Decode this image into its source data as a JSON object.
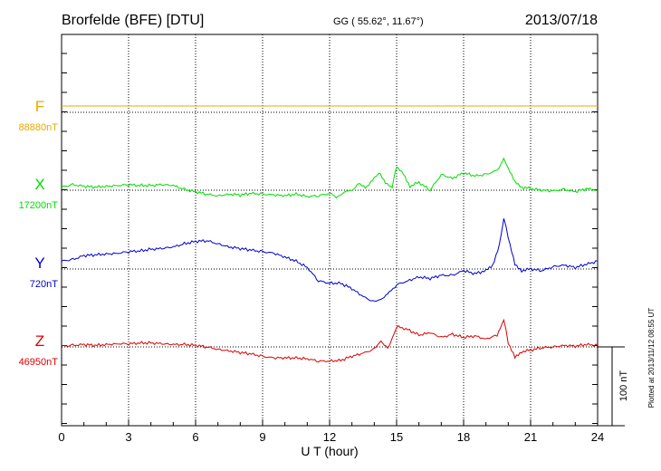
{
  "header": {
    "station": "Brorfelde (BFE)  [DTU]",
    "coords": "GG ( 55.62°,  11.67°)",
    "date": "2013/07/18"
  },
  "side_note": "Plotted at 2013/11/12 08:55 UT",
  "scale_label": "100 nT",
  "colors": {
    "F": "#e8a800",
    "X": "#00dd00",
    "Y": "#0000cc",
    "Z": "#dd0000",
    "axis": "#000000"
  },
  "chart_data": {
    "type": "line",
    "xlabel": "U T (hour)",
    "xlim": [
      0,
      24
    ],
    "x_ticks": [
      0,
      3,
      6,
      9,
      12,
      15,
      18,
      21,
      24
    ],
    "scale_bar_nT": 100,
    "series": [
      {
        "name": "F",
        "baseline_label": "88880nT",
        "x": [
          0,
          24
        ],
        "values": [
          8,
          8
        ]
      },
      {
        "name": "X",
        "baseline_label": "17200nT",
        "x": [
          0,
          0.5,
          1,
          1.5,
          2,
          2.5,
          3,
          3.5,
          4,
          4.5,
          5,
          5.5,
          6,
          6.5,
          7,
          7.5,
          8,
          8.5,
          9,
          9.5,
          10,
          10.5,
          11,
          11.5,
          12,
          12.3,
          12.6,
          13,
          13.3,
          13.6,
          14,
          14.2,
          14.5,
          14.8,
          15,
          15.3,
          15.6,
          16,
          16.5,
          17,
          17.5,
          18,
          18.5,
          19,
          19.5,
          19.8,
          20,
          20.3,
          20.6,
          21,
          21.5,
          22,
          22.5,
          23,
          23.5,
          24
        ],
        "values": [
          4,
          7,
          5,
          4,
          5,
          6,
          7,
          6,
          6,
          7,
          6,
          1,
          -2,
          -5,
          -7,
          -5,
          -6,
          -4,
          -5,
          -6,
          -7,
          -5,
          -8,
          -7,
          -4,
          -9,
          -3,
          0,
          8,
          3,
          15,
          22,
          10,
          4,
          30,
          20,
          5,
          10,
          0,
          20,
          15,
          22,
          18,
          20,
          25,
          40,
          28,
          10,
          4,
          2,
          0,
          -1,
          1,
          -2,
          2,
          0
        ]
      },
      {
        "name": "Y",
        "baseline_label": "720nT",
        "x": [
          0,
          0.5,
          1,
          1.5,
          2,
          2.5,
          3,
          3.5,
          4,
          4.5,
          5,
          5.5,
          6,
          6.5,
          7,
          7.5,
          8,
          8.5,
          9,
          9.5,
          10,
          10.5,
          11,
          11.5,
          12,
          12.5,
          13,
          13.5,
          14,
          14.3,
          14.6,
          15,
          15.5,
          16,
          16.5,
          17,
          17.5,
          18,
          18.5,
          19,
          19.3,
          19.6,
          19.8,
          20,
          20.3,
          20.6,
          21,
          21.5,
          22,
          22.5,
          23,
          23.5,
          24
        ],
        "values": [
          10,
          12,
          17,
          18,
          19,
          20,
          22,
          23,
          25,
          26,
          28,
          32,
          35,
          36,
          32,
          28,
          26,
          24,
          22,
          20,
          15,
          10,
          2,
          -15,
          -18,
          -18,
          -25,
          -35,
          -42,
          -38,
          -32,
          -20,
          -15,
          -10,
          -12,
          -8,
          -8,
          -2,
          -6,
          -2,
          5,
          30,
          65,
          40,
          5,
          -2,
          0,
          -2,
          3,
          5,
          2,
          6,
          10
        ]
      },
      {
        "name": "Z",
        "baseline_label": "46950nT",
        "x": [
          0,
          0.5,
          1,
          1.5,
          2,
          2.5,
          3,
          3.5,
          4,
          4.5,
          5,
          5.5,
          6,
          6.5,
          7,
          7.5,
          8,
          8.5,
          9,
          9.5,
          10,
          10.5,
          11,
          11.5,
          12,
          12.5,
          13,
          13.5,
          14,
          14.3,
          14.6,
          14.8,
          15,
          15.5,
          16,
          16.5,
          17,
          17.5,
          18,
          18.5,
          19,
          19.5,
          19.8,
          20,
          20.3,
          20.6,
          21,
          21.5,
          22,
          22.5,
          23,
          23.5,
          24
        ],
        "values": [
          1,
          2,
          3,
          2,
          3,
          4,
          4,
          5,
          5,
          4,
          3,
          3,
          2,
          0,
          -3,
          -5,
          -7,
          -9,
          -12,
          -14,
          -14,
          -14,
          -15,
          -18,
          -18,
          -17,
          -12,
          -8,
          -3,
          8,
          -2,
          10,
          26,
          22,
          15,
          18,
          12,
          16,
          12,
          14,
          10,
          15,
          35,
          5,
          -14,
          -6,
          -4,
          -1,
          0,
          2,
          1,
          3,
          2
        ]
      }
    ]
  }
}
